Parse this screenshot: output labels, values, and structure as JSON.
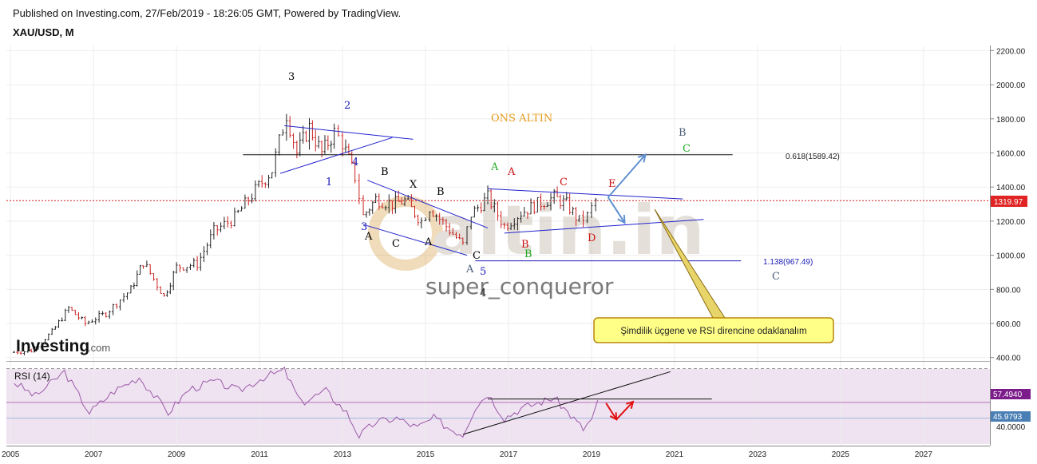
{
  "header": {
    "published": "Published on Investing.com, 27/Feb/2019 - 18:26:05 GMT, Powered by TradingView.",
    "symbol": "XAU/USD, M"
  },
  "brand": {
    "logo_main": "Investing",
    "logo_suffix": ".com",
    "watermark": "altin.in",
    "author": "super_conqueror"
  },
  "annotations": {
    "chart_title": "ONS ALTIN",
    "fib_upper": "0.618(1589.42)",
    "fib_lower": "1.138(967.49)",
    "callout": "Şimdilik üçgene ve RSI direncine odaklanalım",
    "price_badge": "1319.97",
    "rsi_badge_1": "57.4940",
    "rsi_badge_2": "45.9793",
    "rsi_label": "RSI (14)"
  },
  "waves": [
    {
      "t": "3",
      "c": "#000000"
    },
    {
      "t": "2",
      "c": "#1a1ab5"
    },
    {
      "t": "1",
      "c": "#1a1ab5"
    },
    {
      "t": "4",
      "c": "#1a1ab5"
    },
    {
      "t": "3",
      "c": "#1a1ab5"
    },
    {
      "t": "A",
      "c": "#000000"
    },
    {
      "t": "B",
      "c": "#000000"
    },
    {
      "t": "C",
      "c": "#000000"
    },
    {
      "t": "X",
      "c": "#000000"
    },
    {
      "t": "A",
      "c": "#000000"
    },
    {
      "t": "B",
      "c": "#000000"
    },
    {
      "t": "C",
      "c": "#000000"
    },
    {
      "t": "A",
      "c": "#4d5f7a"
    },
    {
      "t": "5",
      "c": "#1a1ab5"
    },
    {
      "t": "4",
      "c": "#222222"
    },
    {
      "t": "A",
      "c": "#22aa22"
    },
    {
      "t": "B",
      "c": "#22aa22"
    },
    {
      "t": "A",
      "c": "#cc1111"
    },
    {
      "t": "B",
      "c": "#cc1111"
    },
    {
      "t": "C",
      "c": "#cc1111"
    },
    {
      "t": "D",
      "c": "#cc1111"
    },
    {
      "t": "E",
      "c": "#cc1111"
    },
    {
      "t": "B",
      "c": "#4d5f7a"
    },
    {
      "t": "C",
      "c": "#22aa22"
    },
    {
      "t": "C",
      "c": "#4d5f7a"
    }
  ],
  "chart_data": [
    {
      "type": "candlestick",
      "title": "XAU/USD, M",
      "x_ticks": [
        "2005",
        "2007",
        "2009",
        "2011",
        "2013",
        "2015",
        "2017",
        "2019",
        "2021",
        "2023",
        "2025",
        "2027"
      ],
      "y_ticks": [
        "400.00",
        "600.00",
        "800.00",
        "1000.00",
        "1200.00",
        "1400.00",
        "1600.00",
        "1800.00",
        "2000.00",
        "2200.00"
      ],
      "ylim": [
        380,
        2230
      ],
      "xlim": [
        2004.9,
        2028.6
      ],
      "last_price": 1319.97,
      "price_path": [
        {
          "x": 2005.0,
          "y": 430
        },
        {
          "x": 2005.5,
          "y": 440
        },
        {
          "x": 2006.0,
          "y": 550
        },
        {
          "x": 2006.4,
          "y": 690
        },
        {
          "x": 2006.8,
          "y": 600
        },
        {
          "x": 2007.3,
          "y": 660
        },
        {
          "x": 2007.9,
          "y": 800
        },
        {
          "x": 2008.2,
          "y": 960
        },
        {
          "x": 2008.7,
          "y": 760
        },
        {
          "x": 2009.0,
          "y": 930
        },
        {
          "x": 2009.5,
          "y": 950
        },
        {
          "x": 2009.9,
          "y": 1140
        },
        {
          "x": 2010.4,
          "y": 1220
        },
        {
          "x": 2010.9,
          "y": 1380
        },
        {
          "x": 2011.3,
          "y": 1500
        },
        {
          "x": 2011.65,
          "y": 1830
        },
        {
          "x": 2011.9,
          "y": 1600
        },
        {
          "x": 2012.2,
          "y": 1750
        },
        {
          "x": 2012.5,
          "y": 1600
        },
        {
          "x": 2012.8,
          "y": 1720
        },
        {
          "x": 2013.0,
          "y": 1660
        },
        {
          "x": 2013.3,
          "y": 1460
        },
        {
          "x": 2013.5,
          "y": 1230
        },
        {
          "x": 2013.8,
          "y": 1330
        },
        {
          "x": 2014.2,
          "y": 1300
        },
        {
          "x": 2014.5,
          "y": 1320
        },
        {
          "x": 2014.9,
          "y": 1200
        },
        {
          "x": 2015.1,
          "y": 1280
        },
        {
          "x": 2015.5,
          "y": 1170
        },
        {
          "x": 2015.9,
          "y": 1060
        },
        {
          "x": 2016.1,
          "y": 1240
        },
        {
          "x": 2016.5,
          "y": 1340
        },
        {
          "x": 2016.9,
          "y": 1170
        },
        {
          "x": 2017.3,
          "y": 1250
        },
        {
          "x": 2017.7,
          "y": 1300
        },
        {
          "x": 2018.1,
          "y": 1340
        },
        {
          "x": 2018.4,
          "y": 1300
        },
        {
          "x": 2018.7,
          "y": 1200
        },
        {
          "x": 2018.9,
          "y": 1230
        },
        {
          "x": 2019.1,
          "y": 1320
        }
      ],
      "lines": [
        {
          "name": "0.618(1589.42)",
          "y": 1589.42,
          "x_range": [
            2010.6,
            2022.4
          ]
        },
        {
          "name": "1.138(967.49)",
          "y": 967.49,
          "x_range": [
            2016.2,
            2022.6
          ]
        }
      ],
      "triangles": [
        {
          "upper": [
            [
              2011.6,
              1760
            ],
            [
              2014.7,
              1680
            ]
          ],
          "lower": [
            [
              2011.5,
              1480
            ],
            [
              2014.2,
              1690
            ]
          ]
        },
        {
          "upper": [
            [
              2013.6,
              1440
            ],
            [
              2016.5,
              1160
            ]
          ],
          "lower": [
            [
              2013.5,
              1180
            ],
            [
              2016.0,
              1000
            ]
          ]
        },
        {
          "upper": [
            [
              2016.5,
              1390
            ],
            [
              2021.2,
              1330
            ]
          ],
          "lower": [
            [
              2016.9,
              1130
            ],
            [
              2021.7,
              1210
            ]
          ]
        }
      ],
      "projection_arrows": [
        {
          "from": [
            2019.4,
            1340
          ],
          "to": [
            2020.3,
            1590
          ]
        },
        {
          "from": [
            2019.4,
            1340
          ],
          "to": [
            2019.8,
            1190
          ]
        }
      ]
    },
    {
      "type": "line",
      "title": "RSI (14)",
      "ylim": [
        27,
        82
      ],
      "y_ticks": [
        "40.0000"
      ],
      "levels": [
        57.494,
        45.9793
      ],
      "values": [
        {
          "x": 2005.0,
          "y": 74
        },
        {
          "x": 2005.6,
          "y": 62
        },
        {
          "x": 2006.3,
          "y": 80
        },
        {
          "x": 2006.9,
          "y": 50
        },
        {
          "x": 2007.5,
          "y": 66
        },
        {
          "x": 2008.1,
          "y": 76
        },
        {
          "x": 2008.8,
          "y": 50
        },
        {
          "x": 2009.3,
          "y": 67
        },
        {
          "x": 2009.9,
          "y": 73
        },
        {
          "x": 2010.5,
          "y": 66
        },
        {
          "x": 2011.1,
          "y": 76
        },
        {
          "x": 2011.6,
          "y": 81
        },
        {
          "x": 2012.0,
          "y": 57
        },
        {
          "x": 2012.6,
          "y": 66
        },
        {
          "x": 2013.1,
          "y": 50
        },
        {
          "x": 2013.4,
          "y": 33
        },
        {
          "x": 2013.8,
          "y": 43
        },
        {
          "x": 2014.3,
          "y": 46
        },
        {
          "x": 2014.8,
          "y": 39
        },
        {
          "x": 2015.2,
          "y": 46
        },
        {
          "x": 2015.6,
          "y": 38
        },
        {
          "x": 2015.9,
          "y": 34
        },
        {
          "x": 2016.2,
          "y": 54
        },
        {
          "x": 2016.5,
          "y": 64
        },
        {
          "x": 2016.9,
          "y": 46
        },
        {
          "x": 2017.3,
          "y": 53
        },
        {
          "x": 2017.8,
          "y": 58
        },
        {
          "x": 2018.1,
          "y": 61
        },
        {
          "x": 2018.5,
          "y": 48
        },
        {
          "x": 2018.8,
          "y": 38
        },
        {
          "x": 2019.0,
          "y": 45
        },
        {
          "x": 2019.15,
          "y": 57
        }
      ],
      "trendlines": [
        {
          "from": [
            2015.9,
            34
          ],
          "to": [
            2020.9,
            80
          ]
        },
        {
          "from": [
            2016.5,
            60
          ],
          "to": [
            2021.9,
            60
          ]
        }
      ],
      "arrows": [
        {
          "from": [
            2019.35,
            57
          ],
          "to": [
            2019.6,
            45
          ]
        },
        {
          "from": [
            2019.6,
            45
          ],
          "to": [
            2020.0,
            58
          ]
        }
      ]
    }
  ]
}
